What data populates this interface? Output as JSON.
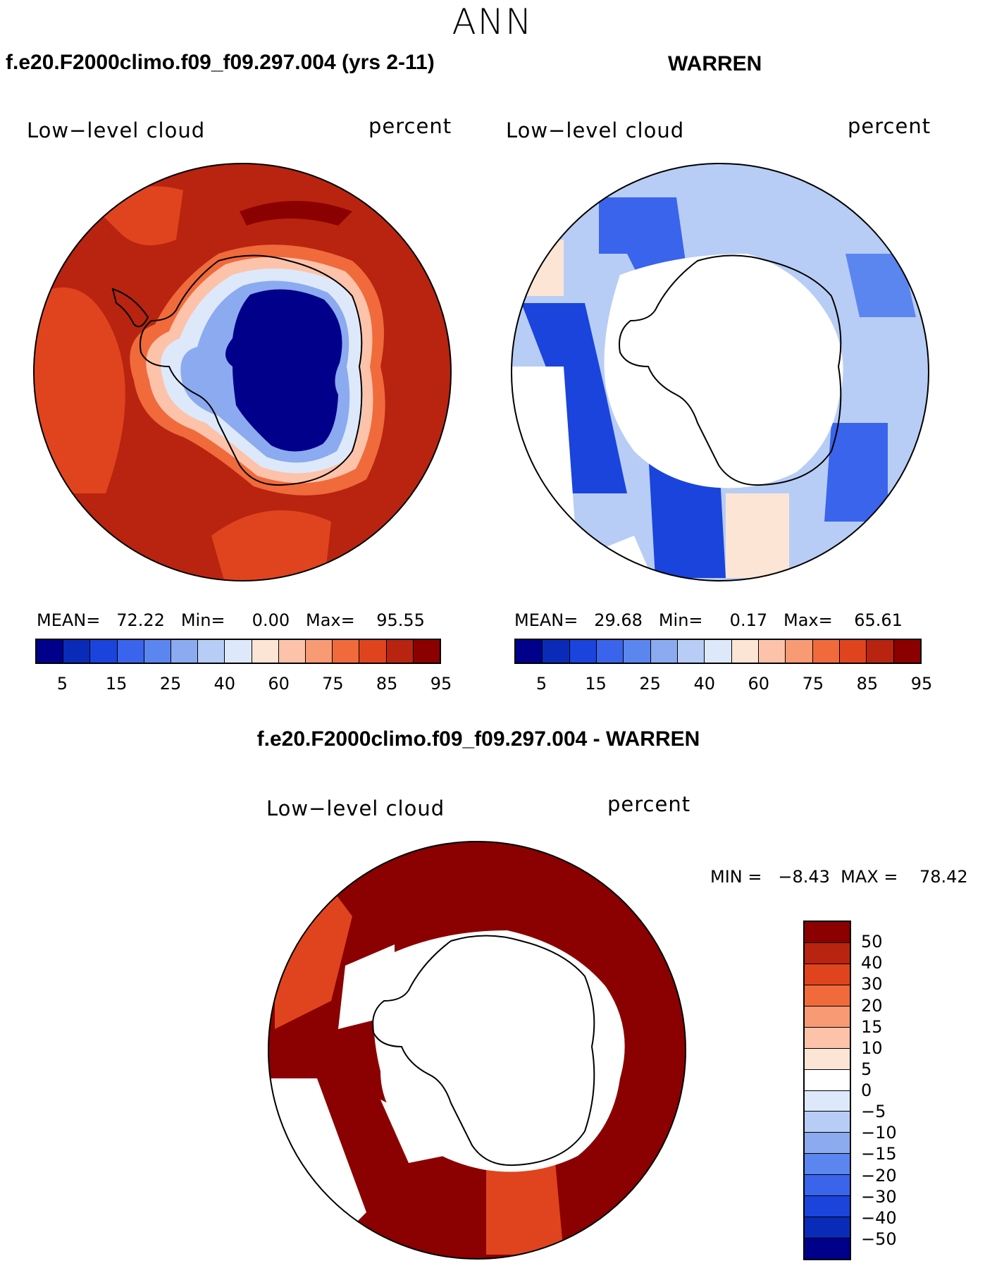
{
  "figure": {
    "suptitle": "ANN"
  },
  "panels": [
    {
      "case_title": "f.e20.F2000climo.f09_f09.297.004 (yrs 2-11)",
      "left_label": "Low−level cloud",
      "right_label": "percent",
      "stats": "MEAN=   72.22   Min=     0.00   Max=    95.55"
    },
    {
      "case_title": "WARREN",
      "left_label": "Low−level cloud",
      "right_label": "percent",
      "stats": "MEAN=   29.68   Min=     0.17   Max=    65.61"
    },
    {
      "case_title": "f.e20.F2000climo.f09_f09.297.004 - WARREN",
      "left_label": "Low−level cloud",
      "right_label": "percent",
      "stats": "MIN =   −8.43  MAX =    78.42"
    }
  ],
  "colorbar_abs": {
    "tick_labels": [
      "5",
      "15",
      "25",
      "40",
      "60",
      "75",
      "85",
      "95"
    ],
    "colors": [
      "#00008b",
      "#0a2bb8",
      "#1a44dc",
      "#3a64ec",
      "#5b86f0",
      "#8caaf0",
      "#b7cdf5",
      "#dde9fa",
      "#fde5d6",
      "#fcc3aa",
      "#f89a74",
      "#f06a3c",
      "#e0441e",
      "#b82410",
      "#8b0000"
    ]
  },
  "colorbar_diff": {
    "tick_labels": [
      "50",
      "40",
      "30",
      "20",
      "15",
      "10",
      "5",
      "0",
      "−5",
      "−10",
      "−15",
      "−20",
      "−30",
      "−40",
      "−50"
    ],
    "colors": [
      "#8b0000",
      "#b82410",
      "#e0441e",
      "#f06a3c",
      "#f89a74",
      "#fcc3aa",
      "#fde5d6",
      "#ffffff",
      "#dde9fa",
      "#b7cdf5",
      "#8caaf0",
      "#5b86f0",
      "#3a64ec",
      "#1a44dc",
      "#0a2bb8",
      "#00008b"
    ]
  },
  "chart_data": [
    {
      "type": "heatmap",
      "title": "f.e20.F2000climo.f09_f09.297.004 (yrs 2-11)",
      "field": "Low−level cloud",
      "units": "percent",
      "projection": "south polar stereographic",
      "stats": {
        "mean": 72.22,
        "min": 0.0,
        "max": 95.55
      },
      "levels": [
        5,
        10,
        15,
        20,
        25,
        30,
        40,
        50,
        60,
        70,
        75,
        80,
        85,
        90,
        95
      ]
    },
    {
      "type": "heatmap",
      "title": "WARREN",
      "field": "Low−level cloud",
      "units": "percent",
      "projection": "south polar stereographic",
      "stats": {
        "mean": 29.68,
        "min": 0.17,
        "max": 65.61
      },
      "levels": [
        5,
        10,
        15,
        20,
        25,
        30,
        40,
        50,
        60,
        70,
        75,
        80,
        85,
        90,
        95
      ]
    },
    {
      "type": "heatmap",
      "title": "f.e20.F2000climo.f09_f09.297.004 - WARREN",
      "field": "Low−level cloud",
      "units": "percent",
      "projection": "south polar stereographic",
      "stats": {
        "min": -8.43,
        "max": 78.42
      },
      "levels": [
        -50,
        -40,
        -30,
        -20,
        -15,
        -10,
        -5,
        0,
        5,
        10,
        15,
        20,
        30,
        40,
        50
      ]
    }
  ]
}
